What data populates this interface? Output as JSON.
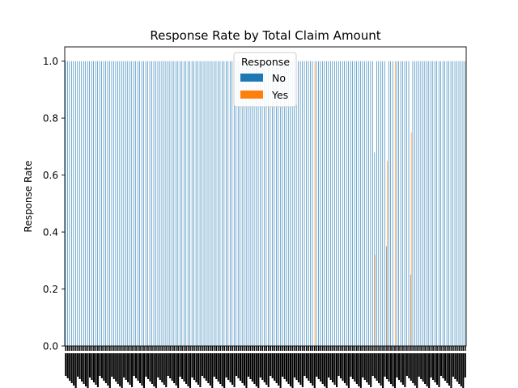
{
  "chart_data": {
    "type": "bar",
    "title": "Response Rate by Total Claim Amount",
    "xlabel": "",
    "ylabel": "Response Rate",
    "ylim": [
      0,
      1.05
    ],
    "yticks": [
      "0.0",
      "0.2",
      "0.4",
      "0.6",
      "0.8",
      "1.0"
    ],
    "ytick_values": [
      0.0,
      0.2,
      0.4,
      0.6,
      0.8,
      1.0
    ],
    "category_count": 200,
    "categories_note": "x tick labels are overprinted and illegible",
    "grid": false,
    "legend": {
      "title": "Response",
      "placement": "top-center",
      "entries": [
        {
          "label": "No",
          "color": "#1f77b4"
        },
        {
          "label": "Yes",
          "color": "#ff7f0e"
        }
      ]
    },
    "series": [
      {
        "name": "No",
        "color": "#1f77b4",
        "default_value": 1.0,
        "exceptions": [
          [
            124,
            0.0
          ],
          [
            154,
            0.68
          ],
          [
            160,
            0.35
          ],
          [
            164,
            0.0
          ],
          [
            172,
            0.25
          ]
        ]
      },
      {
        "name": "Yes",
        "color": "#ff7f0e",
        "default_value": 0.0,
        "exceptions": [
          [
            124,
            1.0
          ],
          [
            154,
            0.32
          ],
          [
            160,
            0.65
          ],
          [
            164,
            1.0
          ],
          [
            172,
            0.75
          ]
        ]
      }
    ]
  }
}
